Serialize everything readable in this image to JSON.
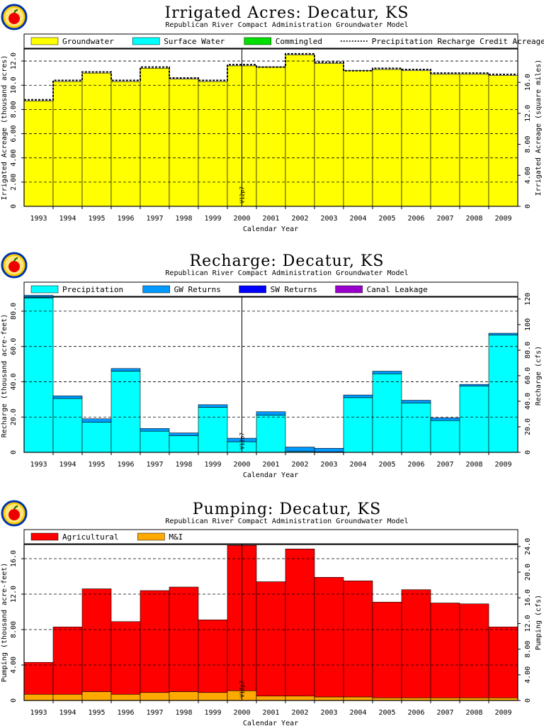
{
  "logo_icon": "apple-logo-icon",
  "chart_data": [
    {
      "type": "bar",
      "title": "Irrigated Acres: Decatur, KS",
      "subtitle": "Republican River Compact Administration Groundwater Model",
      "xlabel": "Calendar Year",
      "ylabel": "Irrigated Acreage (thousand acres)",
      "y2label": "Irrigated Acreage (square miles)",
      "categories": [
        "1993",
        "1994",
        "1995",
        "1996",
        "1997",
        "1998",
        "1999",
        "2000",
        "2001",
        "2002",
        "2003",
        "2004",
        "2005",
        "2006",
        "2007",
        "2008",
        "2009"
      ],
      "ylim": [
        0,
        13.0
      ],
      "yticks": [
        "2.00",
        "4.00",
        "6.00",
        "8.00",
        "10.0",
        "12.0"
      ],
      "y2ticks": [
        "0",
        "4.00",
        "8.00",
        "12.0",
        "16.0"
      ],
      "y2_per_unit": 1.5625,
      "series": [
        {
          "name": "Groundwater",
          "color": "#ffff00",
          "values": [
            8.7,
            10.3,
            11.0,
            10.3,
            11.4,
            10.5,
            10.3,
            11.6,
            11.5,
            12.5,
            11.8,
            11.2,
            11.3,
            11.2,
            10.9,
            10.9,
            10.8
          ]
        },
        {
          "name": "Surface Water",
          "color": "#00ffff",
          "values": [
            0,
            0,
            0,
            0,
            0,
            0,
            0,
            0,
            0,
            0,
            0,
            0,
            0,
            0,
            0,
            0,
            0
          ]
        },
        {
          "name": "Commingled",
          "color": "#00e000",
          "values": [
            0,
            0,
            0,
            0,
            0,
            0,
            0,
            0,
            0,
            0,
            0,
            0,
            0,
            0,
            0,
            0,
            0
          ]
        }
      ],
      "line_series": {
        "name": "Precipitation Recharge Credit Acreage",
        "values": [
          8.8,
          10.4,
          11.1,
          10.4,
          11.5,
          10.6,
          10.4,
          11.7,
          11.5,
          12.6,
          11.9,
          11.2,
          11.4,
          11.3,
          11.0,
          11.0,
          10.9
        ]
      },
      "annotation": "V12p7",
      "grid": true,
      "legend": "top"
    },
    {
      "type": "bar",
      "title": "Recharge: Decatur, KS",
      "subtitle": "Republican River Compact Administration Groundwater Model",
      "xlabel": "Calendar Year",
      "ylabel": "Recharge (thousand acre-feet)",
      "y2label": "Recharge (cfs)",
      "categories": [
        "1993",
        "1994",
        "1995",
        "1996",
        "1997",
        "1998",
        "1999",
        "2000",
        "2001",
        "2002",
        "2003",
        "2004",
        "2005",
        "2006",
        "2007",
        "2008",
        "2009"
      ],
      "ylim": [
        0,
        88
      ],
      "yticks": [
        "20.0",
        "40.0",
        "60.0",
        "80.0"
      ],
      "y2ticks": [
        "0",
        "20.0",
        "40.0",
        "60.0",
        "80.0",
        "100",
        "120"
      ],
      "y2_per_unit": 1.3812,
      "series": [
        {
          "name": "Precipitation",
          "color": "#00ffff",
          "values": [
            87.5,
            30.5,
            17.0,
            46.0,
            12.0,
            9.5,
            25.5,
            6.0,
            21.0,
            0.5,
            0.3,
            31.0,
            44.5,
            28.0,
            18.0,
            37.5,
            66.5
          ]
        },
        {
          "name": "GW Returns",
          "color": "#0099ff",
          "values": [
            1.5,
            1.5,
            2.0,
            1.5,
            1.5,
            1.5,
            1.5,
            2.0,
            2.0,
            2.5,
            2.0,
            1.5,
            1.5,
            1.5,
            1.5,
            1.0,
            1.0
          ]
        },
        {
          "name": "SW Returns",
          "color": "#0000ff",
          "values": [
            0,
            0,
            0,
            0,
            0,
            0,
            0,
            0,
            0,
            0,
            0,
            0,
            0,
            0,
            0,
            0,
            0
          ]
        },
        {
          "name": "Canal Leakage",
          "color": "#9900cc",
          "values": [
            0,
            0,
            0,
            0,
            0,
            0,
            0,
            0,
            0,
            0,
            0,
            0,
            0,
            0,
            0,
            0,
            0
          ]
        }
      ],
      "annotation": "V12p7",
      "grid": true,
      "legend": "top"
    },
    {
      "type": "bar",
      "title": "Pumping: Decatur, KS",
      "subtitle": "Republican River Compact Administration Groundwater Model",
      "xlabel": "Calendar Year",
      "ylabel": "Pumping (thousand acre-feet)",
      "y2label": "Pumping (cfs)",
      "categories": [
        "1993",
        "1994",
        "1995",
        "1996",
        "1997",
        "1998",
        "1999",
        "2000",
        "2001",
        "2002",
        "2003",
        "2004",
        "2005",
        "2006",
        "2007",
        "2008",
        "2009"
      ],
      "ylim": [
        0,
        17.6
      ],
      "yticks": [
        "4.00",
        "8.00",
        "12.0",
        "16.0"
      ],
      "y2ticks": [
        "0",
        "4.00",
        "8.00",
        "12.0",
        "16.0",
        "20.0",
        "24.0"
      ],
      "y2_per_unit": 1.3812,
      "series": [
        {
          "name": "M&I",
          "color": "#ffaa00",
          "values": [
            0.7,
            0.7,
            1.0,
            0.7,
            0.9,
            1.0,
            0.9,
            1.1,
            0.5,
            0.5,
            0.4,
            0.4,
            0.3,
            0.3,
            0.3,
            0.3,
            0.3
          ]
        },
        {
          "name": "Agricultural",
          "color": "#ff0000",
          "values": [
            3.6,
            7.6,
            11.6,
            8.2,
            11.5,
            11.8,
            8.2,
            16.4,
            12.9,
            16.6,
            13.5,
            13.1,
            10.8,
            12.2,
            10.7,
            10.6,
            8.0
          ]
        }
      ],
      "legend_order": [
        "Agricultural",
        "M&I"
      ],
      "annotation": "V12p7",
      "grid": true,
      "legend": "top"
    }
  ]
}
